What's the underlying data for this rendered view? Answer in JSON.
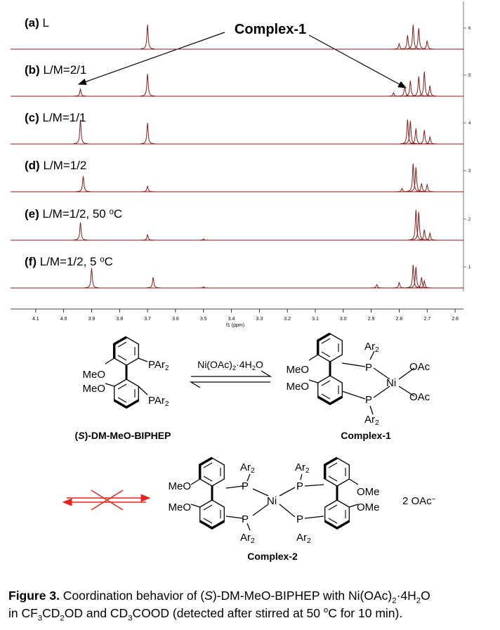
{
  "spectra": {
    "annotation": "Complex-1",
    "panels": [
      {
        "label": [
          {
            "b": "(a)"
          },
          " L"
        ],
        "trace_number": "6",
        "peaks": [
          {
            "ppm": 3.7,
            "intensity": 58
          },
          {
            "ppm": 2.8,
            "intensity": 13
          },
          {
            "ppm": 2.77,
            "intensity": 33
          },
          {
            "ppm": 2.75,
            "intensity": 58
          },
          {
            "ppm": 2.73,
            "intensity": 50
          },
          {
            "ppm": 2.7,
            "intensity": 20
          }
        ]
      },
      {
        "label": [
          {
            "b": "(b)"
          },
          " L/M=2/1"
        ],
        "trace_number": "5",
        "peaks": [
          {
            "ppm": 3.94,
            "intensity": 17
          },
          {
            "ppm": 3.7,
            "intensity": 53
          },
          {
            "ppm": 2.82,
            "intensity": 8
          },
          {
            "ppm": 2.78,
            "intensity": 25
          },
          {
            "ppm": 2.76,
            "intensity": 37
          },
          {
            "ppm": 2.73,
            "intensity": 47
          },
          {
            "ppm": 2.71,
            "intensity": 58
          },
          {
            "ppm": 2.69,
            "intensity": 25
          }
        ]
      },
      {
        "label": [
          {
            "b": "(c)"
          },
          " L/M=1/1"
        ],
        "trace_number": "4",
        "peaks": [
          {
            "ppm": 3.94,
            "intensity": 58
          },
          {
            "ppm": 3.7,
            "intensity": 50
          },
          {
            "ppm": 2.77,
            "intensity": 58
          },
          {
            "ppm": 2.76,
            "intensity": 55
          },
          {
            "ppm": 2.74,
            "intensity": 37
          },
          {
            "ppm": 2.71,
            "intensity": 33
          },
          {
            "ppm": 2.69,
            "intensity": 17
          }
        ]
      },
      {
        "label": [
          {
            "b": "(d)"
          },
          " L/M=1/2"
        ],
        "trace_number": "3",
        "peaks": [
          {
            "ppm": 3.93,
            "intensity": 37
          },
          {
            "ppm": 3.7,
            "intensity": 13
          },
          {
            "ppm": 2.79,
            "intensity": 8
          },
          {
            "ppm": 2.75,
            "intensity": 67
          },
          {
            "ppm": 2.74,
            "intensity": 58
          },
          {
            "ppm": 2.72,
            "intensity": 20
          },
          {
            "ppm": 2.7,
            "intensity": 17
          }
        ]
      },
      {
        "label": [
          {
            "b": "(e)"
          },
          " L/M=1/2, 50 ",
          {
            "sup": "o"
          },
          "C"
        ],
        "trace_number": "2",
        "peaks": [
          {
            "ppm": 3.94,
            "intensity": 42
          },
          {
            "ppm": 3.7,
            "intensity": 13
          },
          {
            "ppm": 3.5,
            "intensity": 3
          },
          {
            "ppm": 2.74,
            "intensity": 72
          },
          {
            "ppm": 2.73,
            "intensity": 67
          },
          {
            "ppm": 2.71,
            "intensity": 25
          },
          {
            "ppm": 2.69,
            "intensity": 17
          }
        ]
      },
      {
        "label": [
          {
            "b": "(f)"
          },
          " L/M=1/2, 5 ",
          {
            "sup": "o"
          },
          "C"
        ],
        "trace_number": "1",
        "peaks": [
          {
            "ppm": 3.9,
            "intensity": 47
          },
          {
            "ppm": 3.68,
            "intensity": 25
          },
          {
            "ppm": 3.5,
            "intensity": 3
          },
          {
            "ppm": 2.88,
            "intensity": 8
          },
          {
            "ppm": 2.8,
            "intensity": 13
          },
          {
            "ppm": 2.75,
            "intensity": 55
          },
          {
            "ppm": 2.74,
            "intensity": 50
          },
          {
            "ppm": 2.72,
            "intensity": 25
          },
          {
            "ppm": 2.71,
            "intensity": 17
          }
        ]
      }
    ],
    "axis": {
      "label": "f1 (ppm)",
      "xlim": [
        4.19,
        2.57
      ],
      "xticks": [
        4.1,
        {
          "value": 4,
          "label": "4.0"
        },
        3.9,
        3.8,
        3.7,
        3.6,
        3.5,
        3.4,
        3.3,
        3.2,
        3.1,
        {
          "value": 3,
          "label": "3.0"
        },
        2.9,
        2.8,
        2.7,
        2.6
      ]
    }
  },
  "scheme": {
    "ligand": {
      "name": [
        "(",
        {
          "i": "S"
        },
        ")-DM-MeO-BIPHEP"
      ],
      "groups": [
        [
          "MeO"
        ],
        [
          "MeO"
        ],
        [
          "PAr",
          {
            "sub": "2"
          }
        ],
        [
          "PAr",
          {
            "sub": "2"
          }
        ]
      ]
    },
    "reagent": [
      "Ni(OAc)",
      {
        "sub": "2"
      },
      "·4H",
      {
        "sub": "2"
      },
      "O"
    ],
    "complex1": {
      "name": "Complex-1",
      "groups": [
        [
          "MeO"
        ],
        [
          "MeO"
        ],
        [
          "Ar",
          {
            "sub": "2"
          }
        ],
        [
          "P"
        ],
        [
          "P"
        ],
        [
          "Ar",
          {
            "sub": "2"
          }
        ],
        [
          "Ni"
        ],
        [
          "OAc"
        ],
        [
          "OAc"
        ]
      ]
    },
    "complex2": {
      "name": "Complex-2",
      "groups": [
        [
          "MeO"
        ],
        [
          "MeO"
        ],
        [
          "Ar",
          {
            "sub": "2"
          }
        ],
        [
          "P"
        ],
        [
          "P"
        ],
        [
          "Ar",
          {
            "sub": "2"
          }
        ],
        [
          "Ni"
        ],
        [
          "Ar",
          {
            "sub": "2"
          }
        ],
        [
          "P"
        ],
        [
          "P"
        ],
        [
          "Ar",
          {
            "sub": "2"
          }
        ],
        [
          "OMe"
        ],
        [
          "OMe"
        ]
      ],
      "counterion": [
        "2 OAc",
        {
          "sup": "−"
        }
      ]
    }
  },
  "caption": {
    "lines": [
      [
        {
          "b": "Figure 3."
        },
        " Coordination behavior of (",
        {
          "i": "S"
        },
        ")-DM-MeO-BIPHEP with Ni(OAc)",
        {
          "sub": "2"
        },
        "·4H",
        {
          "sub": "2"
        },
        "O"
      ],
      [
        "in CF",
        {
          "sub": "3"
        },
        "CD",
        {
          "sub": "2"
        },
        "OD and CD",
        {
          "sub": "3"
        },
        "COOD (detected after stirred at 50 ",
        {
          "sup": "o"
        },
        "C for 10 min)."
      ]
    ]
  }
}
